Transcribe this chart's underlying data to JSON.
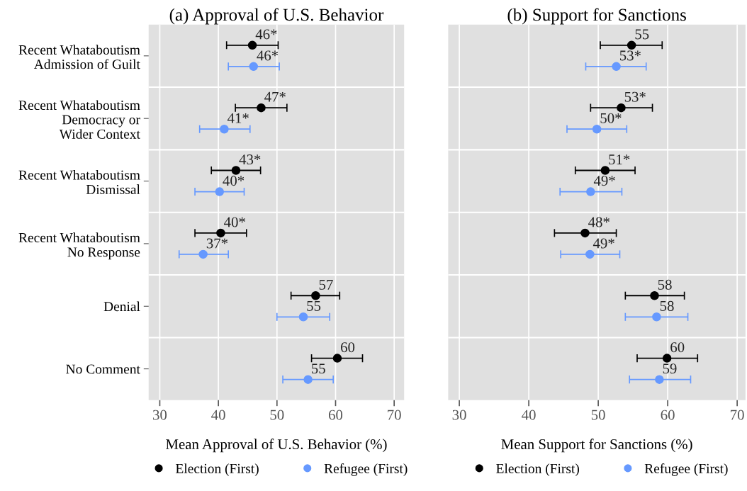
{
  "chart_data": [
    {
      "type": "scatter",
      "title": "(a) Approval of U.S. Behavior",
      "xlabel": "Mean Approval of U.S. Behavior (%)",
      "orientation": "horizontal",
      "categories": [
        "Recent Whataboutism\nAdmission of Guilt",
        "Recent Whataboutism\nDemocracy or\nWider Context",
        "Recent Whataboutism\nDismissal",
        "Recent Whataboutism\nNo Response",
        "Denial",
        "No Comment"
      ],
      "series": [
        {
          "name": "Election (First)",
          "color": "#000000",
          "values": [
            45.8,
            47.3,
            43.0,
            40.4,
            56.6,
            60.3
          ],
          "errors": [
            [
              41.4,
              50.2
            ],
            [
              42.9,
              51.7
            ],
            [
              38.8,
              47.2
            ],
            [
              36.0,
              44.8
            ],
            [
              52.4,
              60.7
            ],
            [
              55.9,
              64.6
            ]
          ],
          "value_labels": [
            "46*",
            "47*",
            "43*",
            "40*",
            "57",
            "60"
          ]
        },
        {
          "name": "Refugee (First)",
          "color": "#6699ff",
          "values": [
            46.0,
            41.0,
            40.2,
            37.4,
            54.5,
            55.3
          ],
          "errors": [
            [
              41.7,
              50.4
            ],
            [
              36.8,
              45.4
            ],
            [
              36.0,
              44.4
            ],
            [
              33.3,
              41.7
            ],
            [
              50.0,
              59.0
            ],
            [
              51.0,
              59.6
            ]
          ],
          "value_labels": [
            "46*",
            "41*",
            "40*",
            "37*",
            "55",
            "55"
          ]
        }
      ],
      "xlim": [
        28.1,
        71.7
      ],
      "xticks": [
        30,
        40,
        50,
        60,
        70
      ],
      "grid": true,
      "legend": "bottom",
      "marker": "circle"
    },
    {
      "type": "scatter",
      "title": "(b) Support for Sanctions",
      "xlabel": "Mean Support for Sanctions (%)",
      "orientation": "horizontal",
      "categories": [
        null,
        null,
        null,
        null,
        null,
        null
      ],
      "series": [
        {
          "name": "Election (First)",
          "color": "#000000",
          "values": [
            54.8,
            53.3,
            51.0,
            48.1,
            58.1,
            59.9
          ],
          "errors": [
            [
              50.3,
              59.2
            ],
            [
              48.9,
              57.8
            ],
            [
              46.7,
              55.3
            ],
            [
              43.7,
              52.6
            ],
            [
              53.9,
              62.4
            ],
            [
              55.6,
              64.3
            ]
          ],
          "value_labels": [
            "55",
            "53*",
            "51*",
            "48*",
            "58",
            "60"
          ]
        },
        {
          "name": "Refugee (First)",
          "color": "#6699ff",
          "values": [
            52.6,
            49.8,
            48.9,
            48.8,
            58.4,
            58.8
          ],
          "errors": [
            [
              48.2,
              56.9
            ],
            [
              45.5,
              54.1
            ],
            [
              44.5,
              53.4
            ],
            [
              44.6,
              53.1
            ],
            [
              53.9,
              62.9
            ],
            [
              54.5,
              63.3
            ]
          ],
          "value_labels": [
            "53*",
            "50*",
            "49*",
            "49*",
            "58",
            "59"
          ]
        }
      ],
      "xlim": [
        28.4,
        71.2
      ],
      "xticks": [
        30,
        40,
        50,
        60,
        70
      ],
      "grid": true,
      "legend": "bottom",
      "marker": "circle",
      "tick_labels": "x"
    }
  ]
}
